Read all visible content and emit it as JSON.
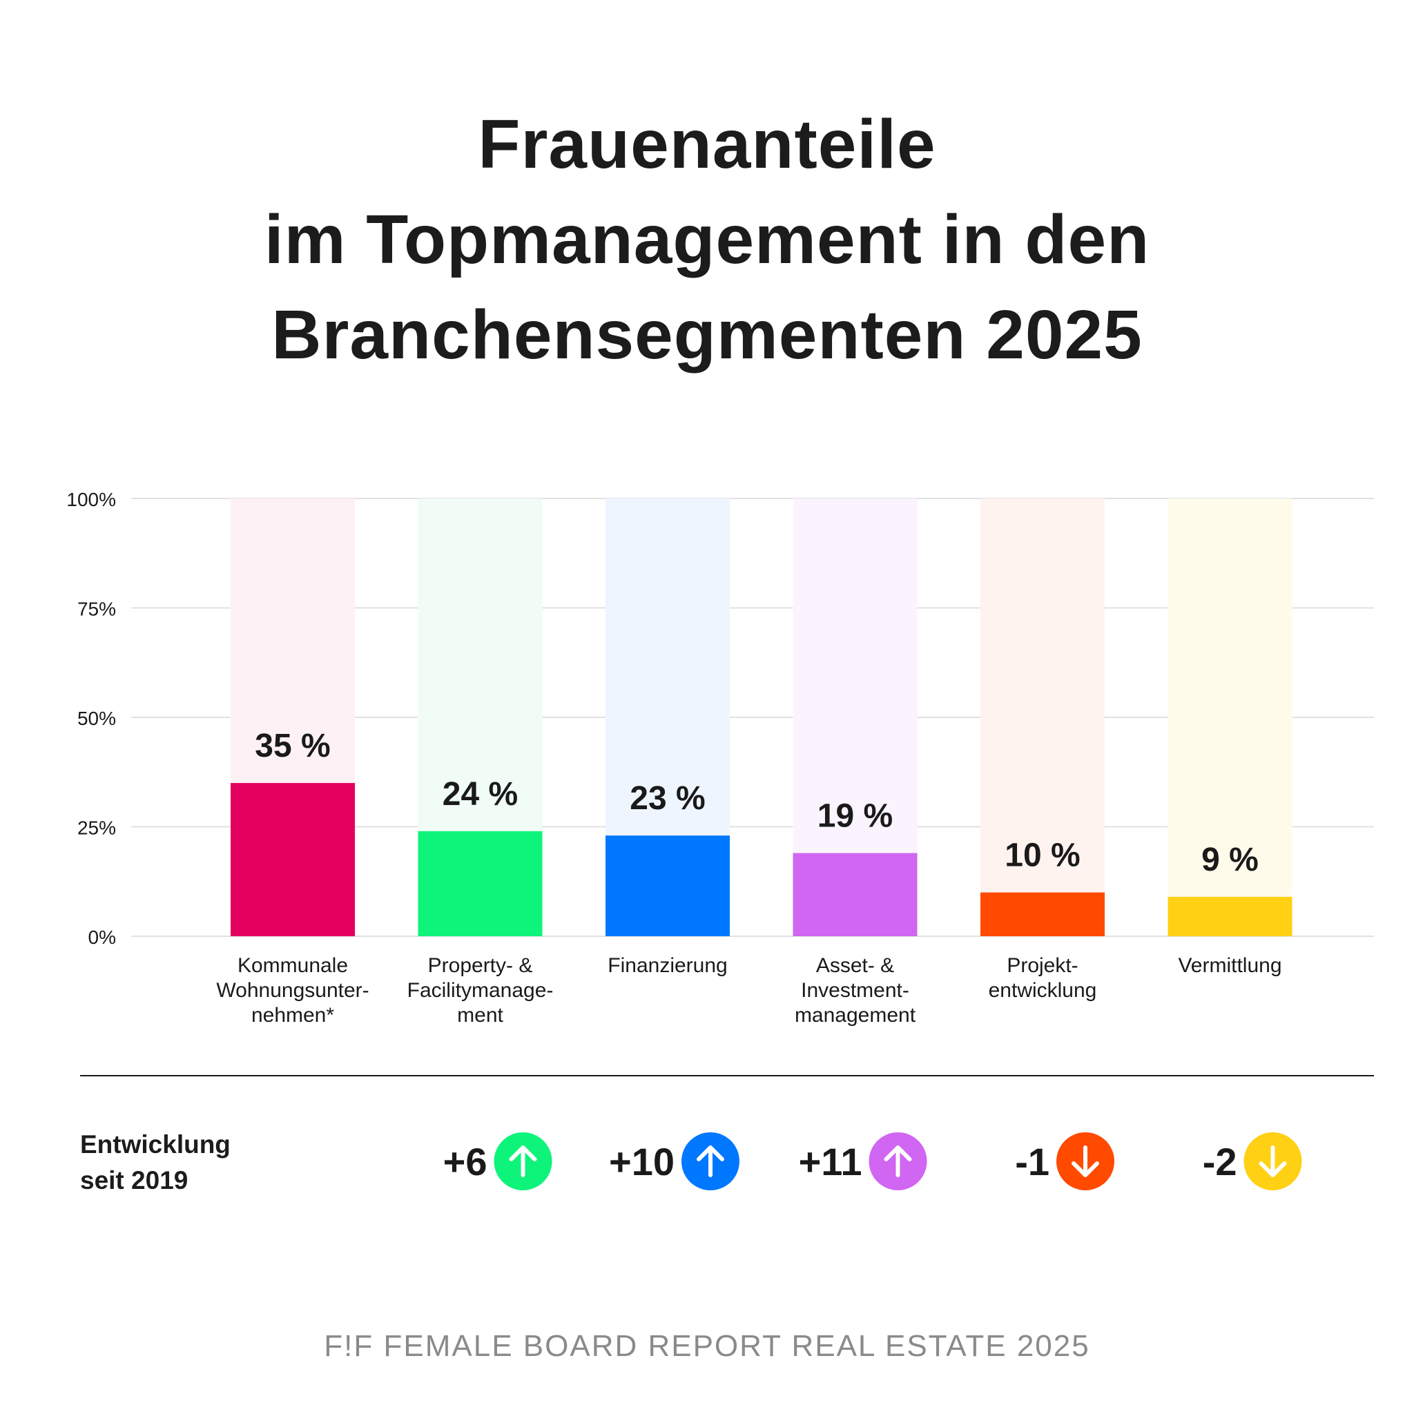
{
  "title": {
    "line1": "Frauenanteile",
    "line2": "im Topmanagement in den",
    "line3": "Branchensegmenten 2025"
  },
  "development": {
    "label_line1": "Entwicklung",
    "label_line2": "seit 2019"
  },
  "footer": "F!F FEMALE BOARD REPORT REAL ESTATE 2025",
  "chart_data": {
    "type": "bar",
    "ylim": [
      0,
      100
    ],
    "yticks": [
      "0%",
      "25%",
      "50%",
      "75%",
      "100%"
    ],
    "grid": true,
    "categories": [
      [
        "Kommunale",
        "Wohnungsunter-",
        "nehmen*"
      ],
      [
        "Property- &",
        "Facilitymanage-",
        "ment"
      ],
      [
        "Finanzierung"
      ],
      [
        "Asset- &",
        "Investment-",
        "management"
      ],
      [
        "Projekt-",
        "entwicklung"
      ],
      [
        "Vermittlung"
      ]
    ],
    "values": [
      35,
      24,
      23,
      19,
      10,
      9
    ],
    "value_labels": [
      "35 %",
      "24 %",
      "23 %",
      "19 %",
      "10 %",
      "9 %"
    ],
    "colors": [
      "#e3005e",
      "#0ef47a",
      "#0077ff",
      "#d066f2",
      "#ff4a00",
      "#ffd014"
    ],
    "track_colors": [
      "#fdf1f5",
      "#f0fcf5",
      "#eef5ff",
      "#fbf4fe",
      "#fff3ef",
      "#fffbeb"
    ],
    "change_since_2019": [
      null,
      {
        "label": "+6",
        "direction": "up"
      },
      {
        "label": "+10",
        "direction": "up"
      },
      {
        "label": "+11",
        "direction": "up"
      },
      {
        "label": "-1",
        "direction": "down"
      },
      {
        "label": "-2",
        "direction": "down"
      }
    ]
  }
}
